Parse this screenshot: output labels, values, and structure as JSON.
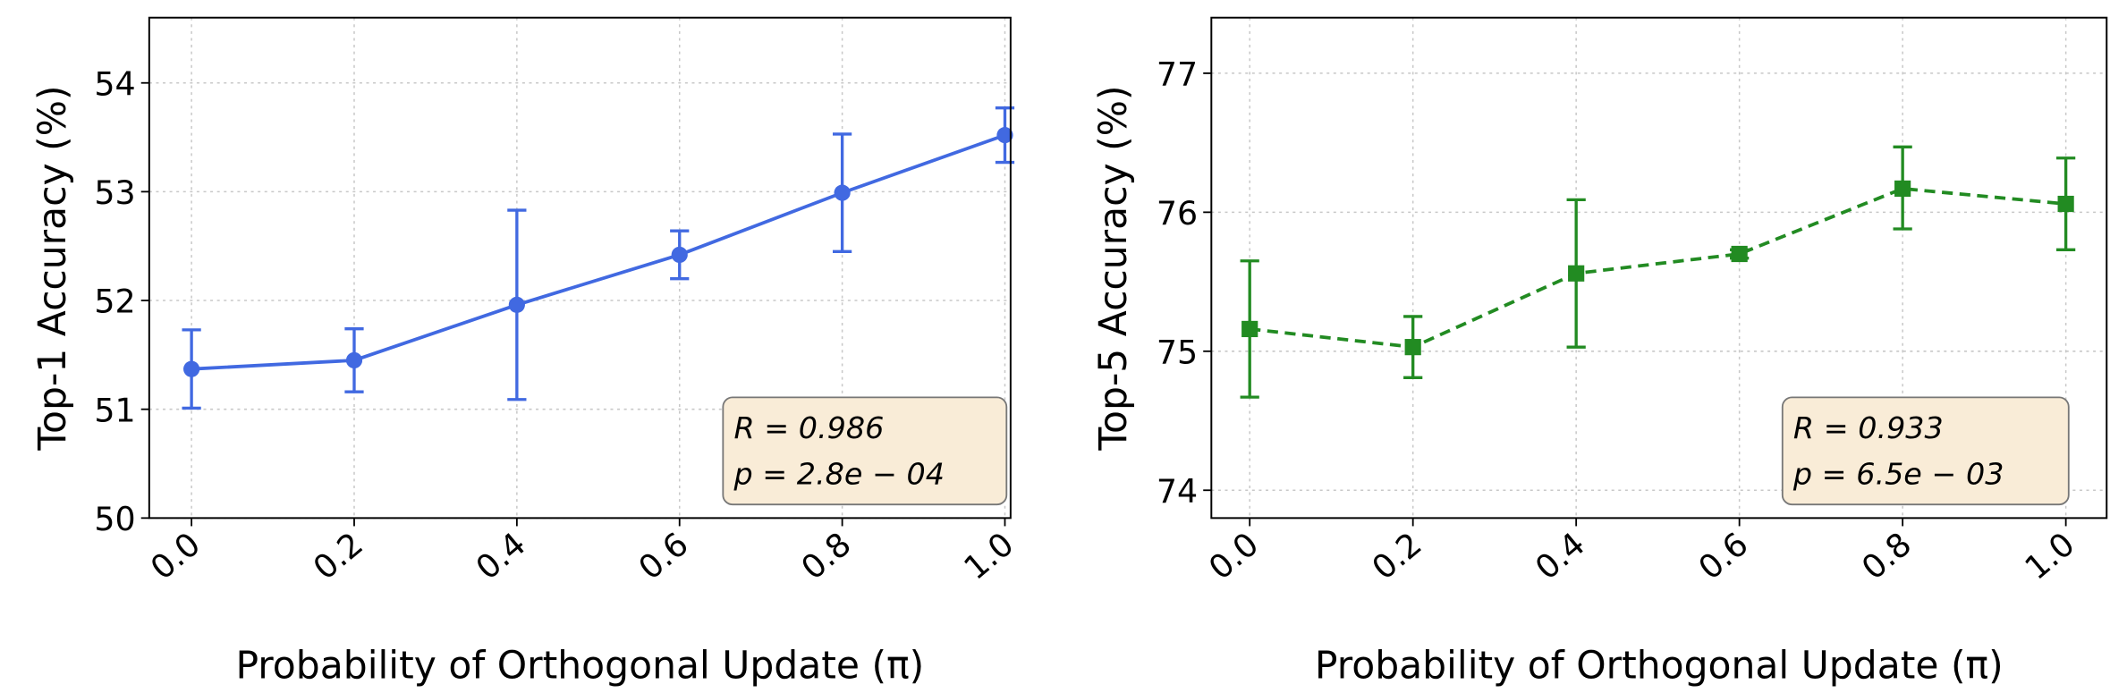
{
  "chart_data": [
    {
      "type": "line",
      "x": [
        0.0,
        0.2,
        0.4,
        0.6,
        0.8,
        1.0
      ],
      "xtick_labels": [
        "0.0",
        "0.2",
        "0.4",
        "0.6",
        "0.8",
        "1.0"
      ],
      "ytick_values": [
        50,
        51,
        52,
        53,
        54
      ],
      "ytick_labels": [
        "50",
        "51",
        "52",
        "53",
        "54"
      ],
      "xlabel": "Probability of Orthogonal Update (π)",
      "ylabel": "Top-1 Accuracy (%)",
      "xlim": [
        -0.052,
        1.007
      ],
      "ylim": [
        50,
        54.6
      ],
      "grid": true,
      "series": [
        {
          "values": [
            51.37,
            51.45,
            51.96,
            52.42,
            52.99,
            53.52
          ],
          "err_low": [
            51.01,
            51.16,
            51.09,
            52.2,
            52.45,
            53.27
          ],
          "err_high": [
            51.73,
            51.74,
            52.83,
            52.64,
            53.53,
            53.77
          ],
          "color": "#4169e1",
          "marker": "circle",
          "linestyle": "solid"
        }
      ],
      "annotation": {
        "line1": "R = 0.986",
        "line2": "p = 2.8e − 04",
        "position": "bottom-right",
        "background": "#f9ecd7"
      }
    },
    {
      "type": "line",
      "x": [
        0.0,
        0.2,
        0.4,
        0.6,
        0.8,
        1.0
      ],
      "xtick_labels": [
        "0.0",
        "0.2",
        "0.4",
        "0.6",
        "0.8",
        "1.0"
      ],
      "ytick_values": [
        74,
        75,
        76,
        77
      ],
      "ytick_labels": [
        "74",
        "75",
        "76",
        "77"
      ],
      "xlabel": "Probability of Orthogonal Update (π)",
      "ylabel": "Top-5 Accuracy (%)",
      "xlim": [
        -0.047,
        1.05
      ],
      "ylim": [
        73.8,
        77.4
      ],
      "grid": true,
      "series": [
        {
          "values": [
            75.16,
            75.03,
            75.56,
            75.7,
            76.17,
            76.06
          ],
          "err_low": [
            74.67,
            74.81,
            75.03,
            75.67,
            75.88,
            75.73
          ],
          "err_high": [
            75.65,
            75.25,
            76.09,
            75.73,
            76.47,
            76.39
          ],
          "color": "#228b22",
          "marker": "square",
          "linestyle": "dashed"
        }
      ],
      "annotation": {
        "line1": "R = 0.933",
        "line2": "p = 6.5e − 03",
        "position": "bottom-right",
        "background": "#f9ecd7"
      }
    }
  ]
}
